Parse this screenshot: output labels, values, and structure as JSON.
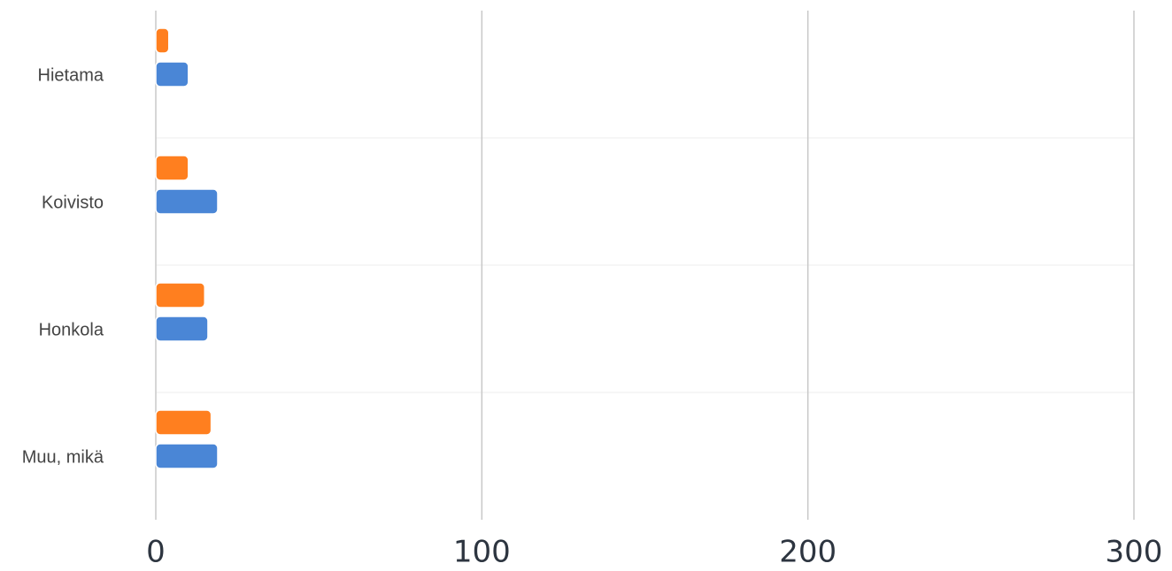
{
  "chart_data": {
    "type": "bar",
    "orientation": "horizontal",
    "categories": [
      "Hietama",
      "Koivisto",
      "Honkola",
      "Muu, mikä"
    ],
    "series": [
      {
        "color": "#ff7f1f",
        "values": [
          4,
          10,
          15,
          17
        ]
      },
      {
        "color": "#4a86d6",
        "values": [
          10,
          19,
          16,
          19
        ]
      }
    ],
    "xlim": [
      0,
      300
    ],
    "xticks": [
      0,
      100,
      200,
      300
    ],
    "grid": true,
    "legend": "none"
  }
}
